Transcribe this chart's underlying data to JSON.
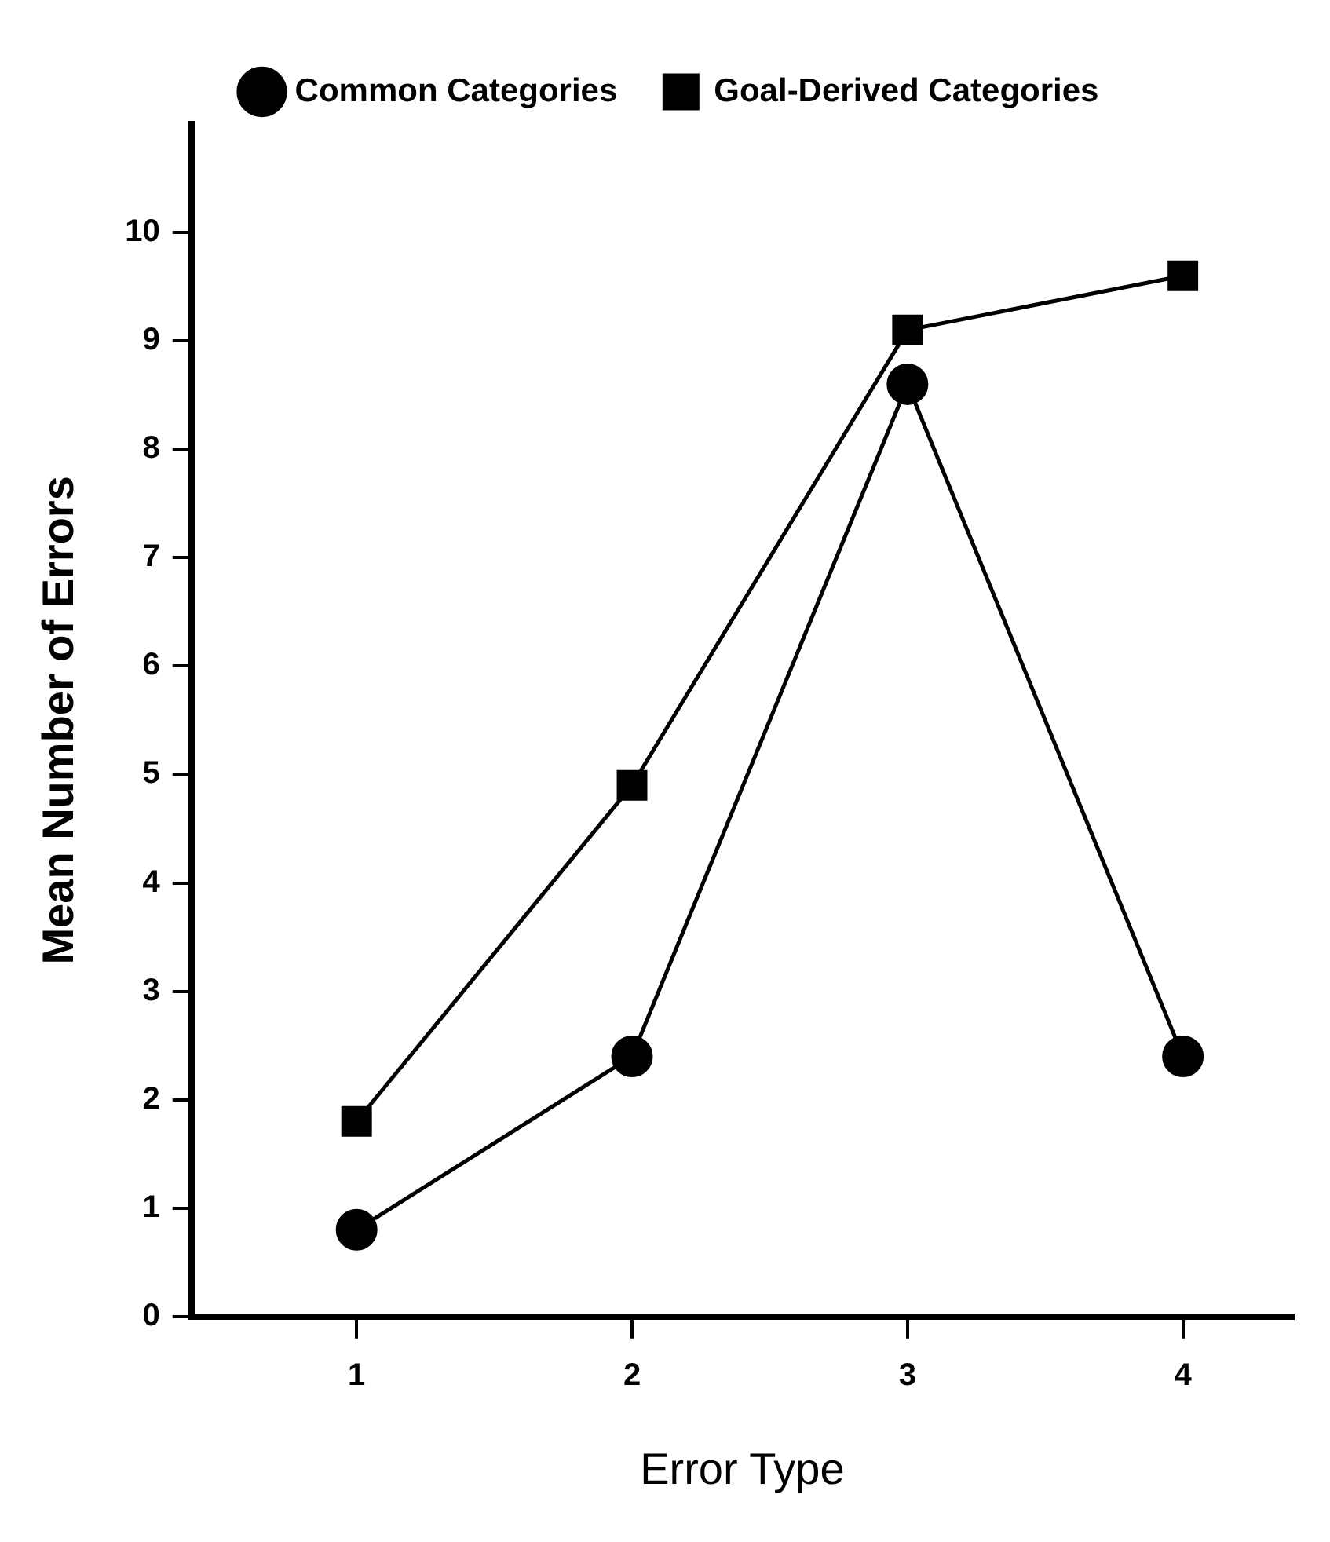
{
  "chart_data": {
    "type": "line",
    "xlabel": "Error Type",
    "ylabel": "Mean Number of Errors",
    "x": [
      1,
      2,
      3,
      4
    ],
    "series": [
      {
        "name": "Common Categories",
        "color": "#000000",
        "values": [
          0.8,
          2.4,
          8.6,
          2.4
        ],
        "marker": "circle"
      },
      {
        "name": "Goal-Derived Categories",
        "color": "#000000",
        "values": [
          1.8,
          4.9,
          9.1,
          9.6
        ],
        "marker": "square"
      }
    ],
    "xlim": [
      0.4,
      4.4
    ],
    "xticks": [
      1,
      2,
      3,
      4
    ],
    "ylim": [
      0,
      11
    ],
    "yticks": [
      0,
      1,
      2,
      3,
      4,
      5,
      6,
      7,
      8,
      9,
      10
    ],
    "grid": false,
    "legend": "top",
    "line_style": "solid"
  }
}
